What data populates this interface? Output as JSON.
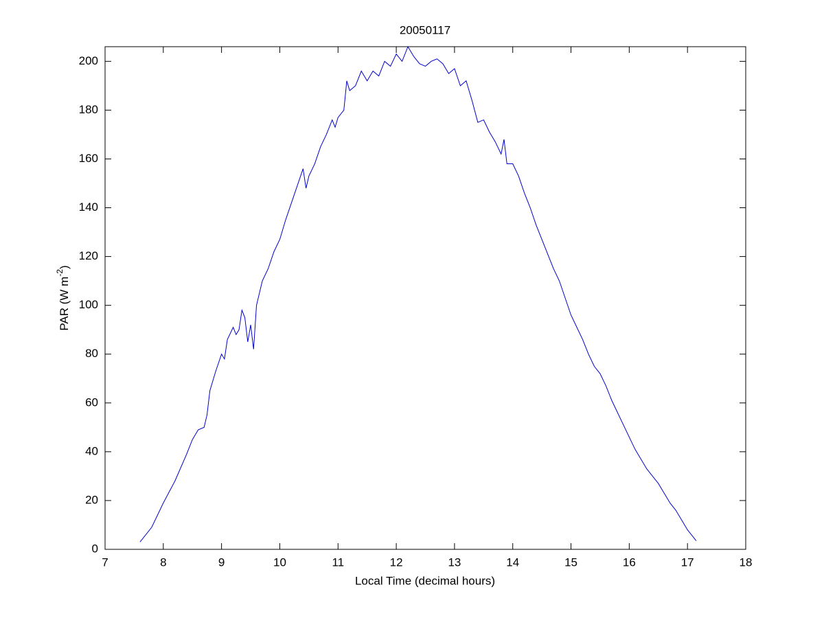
{
  "chart_data": {
    "type": "line",
    "title": "20050117",
    "xlabel": "Local Time (decimal hours)",
    "ylabel": [
      "PAR (W m",
      "-2",
      ")"
    ],
    "xlim": [
      7,
      18
    ],
    "xticks": [
      7,
      8,
      9,
      10,
      11,
      12,
      13,
      14,
      15,
      16,
      17,
      18
    ],
    "ylim": [
      0,
      206
    ],
    "yticks": [
      0,
      20,
      40,
      60,
      80,
      100,
      120,
      140,
      160,
      180,
      200
    ],
    "series": [
      {
        "color": "#0000cc",
        "x": [
          7.6,
          7.8,
          8.0,
          8.2,
          8.4,
          8.5,
          8.6,
          8.7,
          8.75,
          8.8,
          8.9,
          9.0,
          9.05,
          9.1,
          9.2,
          9.25,
          9.3,
          9.35,
          9.4,
          9.45,
          9.5,
          9.55,
          9.6,
          9.7,
          9.8,
          9.9,
          10.0,
          10.1,
          10.2,
          10.3,
          10.4,
          10.45,
          10.5,
          10.6,
          10.7,
          10.8,
          10.9,
          10.95,
          11.0,
          11.1,
          11.15,
          11.2,
          11.3,
          11.4,
          11.5,
          11.6,
          11.7,
          11.8,
          11.9,
          12.0,
          12.1,
          12.2,
          12.3,
          12.4,
          12.5,
          12.6,
          12.7,
          12.8,
          12.9,
          13.0,
          13.1,
          13.2,
          13.3,
          13.4,
          13.5,
          13.6,
          13.7,
          13.8,
          13.85,
          13.9,
          14.0,
          14.1,
          14.2,
          14.3,
          14.4,
          14.5,
          14.6,
          14.7,
          14.8,
          14.9,
          15.0,
          15.1,
          15.2,
          15.3,
          15.4,
          15.5,
          15.6,
          15.7,
          15.8,
          15.9,
          16.0,
          16.1,
          16.2,
          16.3,
          16.4,
          16.5,
          16.6,
          16.7,
          16.8,
          16.9,
          17.0,
          17.1,
          17.15
        ],
        "values": [
          3,
          9,
          19,
          28,
          39,
          45,
          49,
          50,
          55,
          65,
          73,
          80,
          78,
          86,
          91,
          88,
          90,
          98,
          95,
          85,
          92,
          82,
          100,
          110,
          115,
          122,
          127,
          135,
          142,
          149,
          156,
          148,
          153,
          158,
          165,
          170,
          176,
          173,
          177,
          180,
          192,
          188,
          190,
          196,
          192,
          196,
          194,
          200,
          198,
          203,
          200,
          206,
          202,
          199,
          198,
          200,
          201,
          199,
          195,
          197,
          190,
          192,
          184,
          175,
          176,
          171,
          167,
          162,
          168,
          158,
          158,
          153,
          146,
          140,
          133,
          127,
          121,
          115,
          110,
          103,
          96,
          91,
          86,
          80,
          75,
          72,
          67,
          61,
          56,
          51,
          46,
          41,
          37,
          33,
          30,
          27,
          23,
          19,
          16,
          12,
          8,
          5,
          3.5
        ]
      }
    ]
  }
}
